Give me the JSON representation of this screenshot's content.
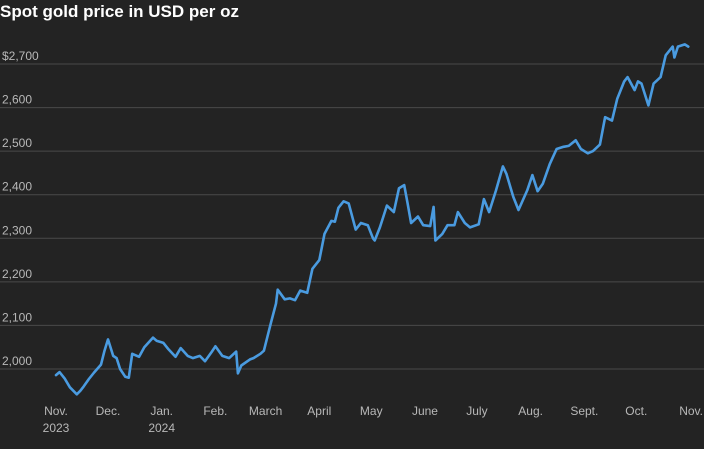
{
  "chart_data": {
    "type": "line",
    "title": "Spot gold price in USD per oz",
    "xlabel": "",
    "ylabel": "",
    "ylim": [
      1930,
      2760
    ],
    "xlim": [
      "2023-11-01",
      "2024-11-01"
    ],
    "grid": "horizontal",
    "y_ticks": [
      {
        "value": 2000,
        "label": "2,000"
      },
      {
        "value": 2100,
        "label": "2,100"
      },
      {
        "value": 2200,
        "label": "2,200"
      },
      {
        "value": 2300,
        "label": "2,300"
      },
      {
        "value": 2400,
        "label": "2,400"
      },
      {
        "value": 2500,
        "label": "2,500"
      },
      {
        "value": 2600,
        "label": "2,600"
      },
      {
        "value": 2700,
        "label": "$2,700"
      }
    ],
    "x_ticks": [
      {
        "date": "2023-11-01",
        "label": "Nov.",
        "sublabel": "2023"
      },
      {
        "date": "2023-12-01",
        "label": "Dec.",
        "sublabel": ""
      },
      {
        "date": "2024-01-01",
        "label": "Jan.",
        "sublabel": "2024"
      },
      {
        "date": "2024-02-01",
        "label": "Feb.",
        "sublabel": ""
      },
      {
        "date": "2024-03-01",
        "label": "March",
        "sublabel": ""
      },
      {
        "date": "2024-04-01",
        "label": "April",
        "sublabel": ""
      },
      {
        "date": "2024-05-01",
        "label": "May",
        "sublabel": ""
      },
      {
        "date": "2024-06-01",
        "label": "June",
        "sublabel": ""
      },
      {
        "date": "2024-07-01",
        "label": "July",
        "sublabel": ""
      },
      {
        "date": "2024-08-01",
        "label": "Aug.",
        "sublabel": ""
      },
      {
        "date": "2024-09-01",
        "label": "Sept.",
        "sublabel": ""
      },
      {
        "date": "2024-10-01",
        "label": "Oct.",
        "sublabel": ""
      },
      {
        "date": "2024-11-01",
        "label": "Nov.",
        "sublabel": ""
      }
    ],
    "series": [
      {
        "color": "#4a9be0",
        "points": [
          [
            "2023-11-01",
            1986
          ],
          [
            "2023-11-03",
            1993
          ],
          [
            "2023-11-06",
            1978
          ],
          [
            "2023-11-09",
            1958
          ],
          [
            "2023-11-13",
            1942
          ],
          [
            "2023-11-15",
            1950
          ],
          [
            "2023-11-17",
            1960
          ],
          [
            "2023-11-20",
            1977
          ],
          [
            "2023-11-23",
            1992
          ],
          [
            "2023-11-27",
            2010
          ],
          [
            "2023-11-29",
            2042
          ],
          [
            "2023-12-01",
            2068
          ],
          [
            "2023-12-04",
            2030
          ],
          [
            "2023-12-06",
            2025
          ],
          [
            "2023-12-08",
            2000
          ],
          [
            "2023-12-11",
            1982
          ],
          [
            "2023-12-13",
            1980
          ],
          [
            "2023-12-15",
            2035
          ],
          [
            "2023-12-19",
            2028
          ],
          [
            "2023-12-22",
            2050
          ],
          [
            "2023-12-27",
            2072
          ],
          [
            "2023-12-29",
            2065
          ],
          [
            "2024-01-02",
            2060
          ],
          [
            "2024-01-05",
            2045
          ],
          [
            "2024-01-09",
            2028
          ],
          [
            "2024-01-12",
            2048
          ],
          [
            "2024-01-16",
            2030
          ],
          [
            "2024-01-19",
            2025
          ],
          [
            "2024-01-23",
            2030
          ],
          [
            "2024-01-26",
            2018
          ],
          [
            "2024-01-30",
            2040
          ],
          [
            "2024-02-01",
            2052
          ],
          [
            "2024-02-05",
            2030
          ],
          [
            "2024-02-09",
            2025
          ],
          [
            "2024-02-13",
            2040
          ],
          [
            "2024-02-14",
            1990
          ],
          [
            "2024-02-16",
            2008
          ],
          [
            "2024-02-21",
            2022
          ],
          [
            "2024-02-23",
            2025
          ],
          [
            "2024-02-27",
            2035
          ],
          [
            "2024-02-29",
            2042
          ],
          [
            "2024-03-04",
            2105
          ],
          [
            "2024-03-07",
            2150
          ],
          [
            "2024-03-08",
            2182
          ],
          [
            "2024-03-12",
            2160
          ],
          [
            "2024-03-15",
            2162
          ],
          [
            "2024-03-18",
            2158
          ],
          [
            "2024-03-21",
            2180
          ],
          [
            "2024-03-25",
            2175
          ],
          [
            "2024-03-28",
            2230
          ],
          [
            "2024-04-01",
            2250
          ],
          [
            "2024-04-04",
            2310
          ],
          [
            "2024-04-08",
            2340
          ],
          [
            "2024-04-10",
            2338
          ],
          [
            "2024-04-12",
            2370
          ],
          [
            "2024-04-15",
            2385
          ],
          [
            "2024-04-18",
            2380
          ],
          [
            "2024-04-22",
            2320
          ],
          [
            "2024-04-25",
            2335
          ],
          [
            "2024-04-29",
            2330
          ],
          [
            "2024-05-02",
            2300
          ],
          [
            "2024-05-03",
            2295
          ],
          [
            "2024-05-06",
            2325
          ],
          [
            "2024-05-10",
            2375
          ],
          [
            "2024-05-14",
            2360
          ],
          [
            "2024-05-17",
            2415
          ],
          [
            "2024-05-20",
            2422
          ],
          [
            "2024-05-22",
            2380
          ],
          [
            "2024-05-24",
            2335
          ],
          [
            "2024-05-28",
            2350
          ],
          [
            "2024-05-31",
            2330
          ],
          [
            "2024-06-04",
            2328
          ],
          [
            "2024-06-06",
            2372
          ],
          [
            "2024-06-07",
            2295
          ],
          [
            "2024-06-11",
            2310
          ],
          [
            "2024-06-14",
            2330
          ],
          [
            "2024-06-18",
            2330
          ],
          [
            "2024-06-20",
            2360
          ],
          [
            "2024-06-24",
            2335
          ],
          [
            "2024-06-27",
            2325
          ],
          [
            "2024-07-02",
            2332
          ],
          [
            "2024-07-05",
            2390
          ],
          [
            "2024-07-08",
            2360
          ],
          [
            "2024-07-12",
            2410
          ],
          [
            "2024-07-16",
            2465
          ],
          [
            "2024-07-18",
            2448
          ],
          [
            "2024-07-22",
            2395
          ],
          [
            "2024-07-25",
            2365
          ],
          [
            "2024-07-30",
            2410
          ],
          [
            "2024-08-02",
            2445
          ],
          [
            "2024-08-05",
            2408
          ],
          [
            "2024-08-08",
            2425
          ],
          [
            "2024-08-12",
            2470
          ],
          [
            "2024-08-16",
            2505
          ],
          [
            "2024-08-20",
            2510
          ],
          [
            "2024-08-23",
            2512
          ],
          [
            "2024-08-27",
            2525
          ],
          [
            "2024-08-30",
            2505
          ],
          [
            "2024-09-03",
            2495
          ],
          [
            "2024-09-06",
            2500
          ],
          [
            "2024-09-10",
            2515
          ],
          [
            "2024-09-13",
            2578
          ],
          [
            "2024-09-17",
            2570
          ],
          [
            "2024-09-20",
            2620
          ],
          [
            "2024-09-24",
            2660
          ],
          [
            "2024-09-26",
            2670
          ],
          [
            "2024-09-30",
            2640
          ],
          [
            "2024-10-02",
            2660
          ],
          [
            "2024-10-04",
            2655
          ],
          [
            "2024-10-08",
            2605
          ],
          [
            "2024-10-11",
            2655
          ],
          [
            "2024-10-15",
            2670
          ],
          [
            "2024-10-18",
            2720
          ],
          [
            "2024-10-22",
            2740
          ],
          [
            "2024-10-23",
            2715
          ],
          [
            "2024-10-25",
            2740
          ],
          [
            "2024-10-29",
            2745
          ],
          [
            "2024-10-31",
            2740
          ]
        ]
      }
    ]
  }
}
